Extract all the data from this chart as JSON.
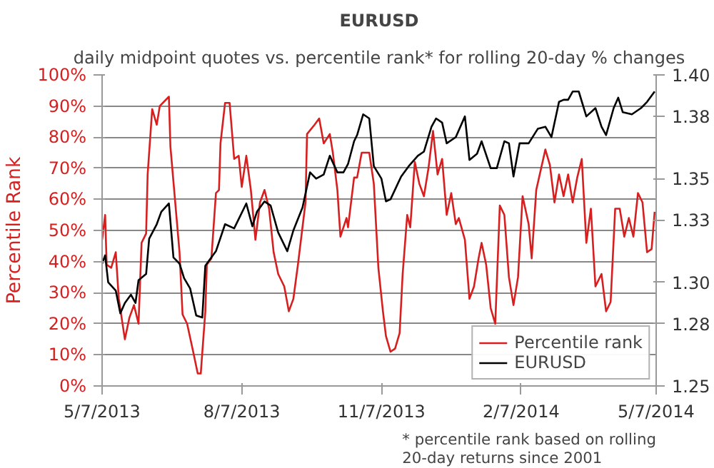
{
  "chart_data": {
    "type": "line",
    "title": "EURUSD",
    "subtitle": "daily midpoint quotes vs. percentile rank* for rolling 20-day % changes",
    "ylabel": "Percentile Rank",
    "annotations": [
      "* percentile rank based on rolling 20-day returns since 2001"
    ],
    "xlim": [
      "2013-05-07",
      "2014-05-07"
    ],
    "xticks": [
      {
        "value": "2013-05-07",
        "label": "5/7/2013"
      },
      {
        "value": "2013-08-07",
        "label": "8/7/2013"
      },
      {
        "value": "2013-11-07",
        "label": "11/7/2013"
      },
      {
        "value": "2014-02-07",
        "label": "2/7/2014"
      },
      {
        "value": "2014-05-07",
        "label": "5/7/2014"
      }
    ],
    "ylim": [
      0,
      100
    ],
    "yticks": [
      {
        "value": 0,
        "label": "0%"
      },
      {
        "value": 10,
        "label": "10%"
      },
      {
        "value": 20,
        "label": "20%"
      },
      {
        "value": 30,
        "label": "30%"
      },
      {
        "value": 40,
        "label": "40%"
      },
      {
        "value": 50,
        "label": "50%"
      },
      {
        "value": 60,
        "label": "60%"
      },
      {
        "value": 70,
        "label": "70%"
      },
      {
        "value": 80,
        "label": "80%"
      },
      {
        "value": 90,
        "label": "90%"
      },
      {
        "value": 100,
        "label": "100%"
      }
    ],
    "y2lim": [
      1.25,
      1.4
    ],
    "y2ticks": [
      {
        "value": 1.25,
        "label": "1.25"
      },
      {
        "value": 1.28,
        "label": "1.28"
      },
      {
        "value": 1.3,
        "label": "1.30"
      },
      {
        "value": 1.33,
        "label": "1.33"
      },
      {
        "value": 1.35,
        "label": "1.35"
      },
      {
        "value": 1.38,
        "label": "1.38"
      },
      {
        "value": 1.4,
        "label": "1.40"
      }
    ],
    "grid": "y",
    "legend": "bottom right",
    "series": [
      {
        "name": "Percentile rank",
        "color": "#d71f1f",
        "x": [
          "2013-05-07",
          "2013-05-09",
          "2013-05-10",
          "2013-05-13",
          "2013-05-16",
          "2013-05-18",
          "2013-05-22",
          "2013-05-25",
          "2013-05-28",
          "2013-05-31",
          "2013-06-02",
          "2013-06-05",
          "2013-06-06",
          "2013-06-09",
          "2013-06-12",
          "2013-06-14",
          "2013-06-20",
          "2013-06-21",
          "2013-06-24",
          "2013-06-27",
          "2013-06-29",
          "2013-07-02",
          "2013-07-06",
          "2013-07-09",
          "2013-07-11",
          "2013-07-14",
          "2013-07-15",
          "2013-07-18",
          "2013-07-21",
          "2013-07-23",
          "2013-07-24",
          "2013-07-27",
          "2013-07-30",
          "2013-08-02",
          "2013-08-05",
          "2013-08-07",
          "2013-08-10",
          "2013-08-13",
          "2013-08-16",
          "2013-08-19",
          "2013-08-22",
          "2013-08-25",
          "2013-08-28",
          "2013-08-31",
          "2013-09-04",
          "2013-09-07",
          "2013-09-10",
          "2013-09-13",
          "2013-09-18",
          "2013-09-19",
          "2013-09-24",
          "2013-09-27",
          "2013-09-30",
          "2013-10-04",
          "2013-10-06",
          "2013-10-09",
          "2013-10-11",
          "2013-10-15",
          "2013-10-16",
          "2013-10-20",
          "2013-10-22",
          "2013-10-25",
          "2013-10-30",
          "2013-11-02",
          "2013-11-05",
          "2013-11-08",
          "2013-11-10",
          "2013-11-13",
          "2013-11-16",
          "2013-11-19",
          "2013-11-21",
          "2013-11-24",
          "2013-11-26",
          "2013-11-29",
          "2013-12-02",
          "2013-12-05",
          "2013-12-08",
          "2013-12-11",
          "2013-12-14",
          "2013-12-17",
          "2013-12-20",
          "2013-12-23",
          "2013-12-26",
          "2013-12-28",
          "2014-01-01",
          "2014-01-04",
          "2014-01-07",
          "2014-01-10",
          "2014-01-12",
          "2014-01-15",
          "2014-01-18",
          "2014-01-21",
          "2014-01-24",
          "2014-01-27",
          "2014-01-30",
          "2014-02-02",
          "2014-02-05",
          "2014-02-08",
          "2014-02-12",
          "2014-02-14",
          "2014-02-17",
          "2014-02-23",
          "2014-02-26",
          "2014-03-01",
          "2014-03-04",
          "2014-03-07",
          "2014-03-10",
          "2014-03-13",
          "2014-03-16",
          "2014-03-19",
          "2014-03-22",
          "2014-03-25",
          "2014-03-28",
          "2014-04-01",
          "2014-04-04",
          "2014-04-07",
          "2014-04-10",
          "2014-04-13",
          "2014-04-16",
          "2014-04-19",
          "2014-04-22",
          "2014-04-25",
          "2014-04-28",
          "2014-05-01",
          "2014-05-04",
          "2014-05-06"
        ],
        "values": [
          47,
          55,
          39,
          38,
          43,
          28,
          15,
          22,
          26,
          20,
          46,
          49,
          68,
          89,
          84,
          90,
          93,
          77,
          60,
          43,
          23,
          20,
          11,
          4,
          4,
          24,
          39,
          41,
          62,
          63,
          78,
          91,
          91,
          73,
          74,
          64,
          74,
          63,
          47,
          59,
          63,
          57,
          43,
          36,
          32,
          24,
          28,
          39,
          59,
          81,
          84,
          86,
          78,
          81,
          75,
          63,
          48,
          54,
          51,
          67,
          67,
          75,
          75,
          65,
          38,
          24,
          16,
          11,
          12,
          17,
          36,
          55,
          51,
          72,
          65,
          61,
          70,
          82,
          68,
          73,
          55,
          62,
          52,
          54,
          47,
          28,
          32,
          41,
          46,
          39,
          25,
          20,
          58,
          55,
          35,
          26,
          35,
          61,
          52,
          41,
          63,
          76,
          71,
          59,
          68,
          61,
          68,
          59,
          67,
          73,
          46,
          57,
          32,
          36,
          24,
          27,
          57,
          57,
          48,
          54,
          48,
          62,
          59,
          43,
          44,
          56
        ]
      },
      {
        "name": "EURUSD",
        "color": "#000000",
        "axis": "y2",
        "x": [
          "2013-05-07",
          "2013-05-09",
          "2013-05-11",
          "2013-05-16",
          "2013-05-19",
          "2013-05-22",
          "2013-05-26",
          "2013-05-29",
          "2013-05-31",
          "2013-06-05",
          "2013-06-07",
          "2013-06-12",
          "2013-06-15",
          "2013-06-20",
          "2013-06-23",
          "2013-06-27",
          "2013-06-30",
          "2013-07-04",
          "2013-07-08",
          "2013-07-12",
          "2013-07-14",
          "2013-07-18",
          "2013-07-21",
          "2013-07-27",
          "2013-08-02",
          "2013-08-10",
          "2013-08-14",
          "2013-08-17",
          "2013-08-22",
          "2013-08-26",
          "2013-08-31",
          "2013-09-06",
          "2013-09-10",
          "2013-09-16",
          "2013-09-21",
          "2013-09-25",
          "2013-09-30",
          "2013-10-04",
          "2013-10-09",
          "2013-10-13",
          "2013-10-16",
          "2013-10-20",
          "2013-10-22",
          "2013-10-26",
          "2013-10-30",
          "2013-11-02",
          "2013-11-07",
          "2013-11-10",
          "2013-11-13",
          "2013-11-20",
          "2013-11-25",
          "2013-12-01",
          "2013-12-05",
          "2013-12-10",
          "2013-12-13",
          "2013-12-17",
          "2013-12-20",
          "2013-12-26",
          "2014-01-01",
          "2014-01-04",
          "2014-01-09",
          "2014-01-12",
          "2014-01-18",
          "2014-01-22",
          "2014-01-27",
          "2014-01-30",
          "2014-02-02",
          "2014-02-06",
          "2014-02-12",
          "2014-02-18",
          "2014-02-23",
          "2014-02-27",
          "2014-03-04",
          "2014-03-07",
          "2014-03-10",
          "2014-03-13",
          "2014-03-17",
          "2014-03-22",
          "2014-03-28",
          "2014-04-01",
          "2014-04-04",
          "2014-04-09",
          "2014-04-12",
          "2014-04-15",
          "2014-04-21",
          "2014-04-27",
          "2014-05-01",
          "2014-05-06"
        ],
        "values": [
          1.309,
          1.313,
          1.3,
          1.296,
          1.285,
          1.29,
          1.294,
          1.29,
          1.301,
          1.304,
          1.321,
          1.328,
          1.334,
          1.338,
          1.312,
          1.309,
          1.302,
          1.297,
          1.284,
          1.283,
          1.308,
          1.312,
          1.315,
          1.328,
          1.326,
          1.338,
          1.327,
          1.334,
          1.339,
          1.337,
          1.324,
          1.315,
          1.325,
          1.336,
          1.353,
          1.35,
          1.352,
          1.361,
          1.353,
          1.353,
          1.357,
          1.368,
          1.371,
          1.381,
          1.379,
          1.356,
          1.35,
          1.339,
          1.34,
          1.351,
          1.356,
          1.361,
          1.363,
          1.375,
          1.379,
          1.377,
          1.367,
          1.37,
          1.38,
          1.359,
          1.362,
          1.368,
          1.355,
          1.355,
          1.368,
          1.367,
          1.351,
          1.367,
          1.367,
          1.374,
          1.375,
          1.37,
          1.387,
          1.388,
          1.388,
          1.392,
          1.392,
          1.38,
          1.384,
          1.375,
          1.371,
          1.384,
          1.389,
          1.382,
          1.381,
          1.384,
          1.387,
          1.392
        ]
      }
    ]
  }
}
